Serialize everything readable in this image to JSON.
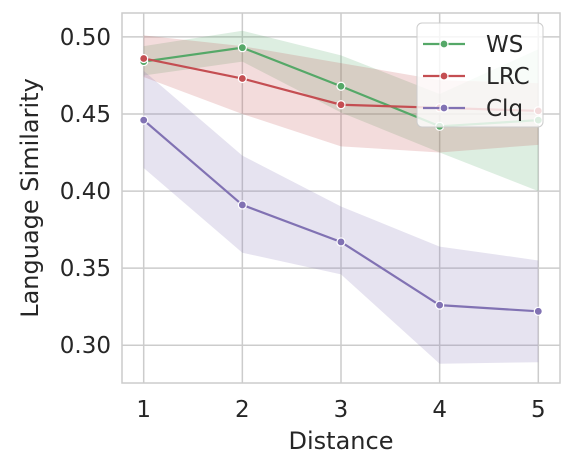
{
  "chart_data": {
    "type": "line",
    "xlabel": "Distance",
    "ylabel": "Language Similarity",
    "x": [
      1,
      2,
      3,
      4,
      5
    ],
    "xlim": [
      0.78,
      5.22
    ],
    "ylim": [
      0.2755,
      0.5155
    ],
    "xticks": [
      "1",
      "2",
      "3",
      "4",
      "5"
    ],
    "yticks": [
      0.3,
      0.35,
      0.4,
      0.45,
      0.5
    ],
    "ytick_labels": [
      "0.30",
      "0.35",
      "0.40",
      "0.45",
      "0.50"
    ],
    "grid": true,
    "legend_position": "top-right",
    "series": [
      {
        "name": "WS",
        "color": "#55a868",
        "values": [
          0.484,
          0.493,
          0.468,
          0.442,
          0.446
        ],
        "ci_lower": [
          0.475,
          0.484,
          0.451,
          0.425,
          0.4
        ],
        "ci_upper": [
          0.494,
          0.504,
          0.488,
          0.463,
          0.492
        ]
      },
      {
        "name": "LRC",
        "color": "#c44e52",
        "values": [
          0.486,
          0.473,
          0.456,
          0.454,
          0.452
        ],
        "ci_lower": [
          0.474,
          0.45,
          0.429,
          0.425,
          0.43
        ],
        "ci_upper": [
          0.501,
          0.494,
          0.483,
          0.472,
          0.47
        ]
      },
      {
        "name": "Clq",
        "color": "#8172b3",
        "values": [
          0.446,
          0.391,
          0.367,
          0.326,
          0.322
        ],
        "ci_lower": [
          0.415,
          0.36,
          0.346,
          0.288,
          0.289
        ],
        "ci_upper": [
          0.478,
          0.423,
          0.39,
          0.364,
          0.355
        ]
      }
    ]
  }
}
